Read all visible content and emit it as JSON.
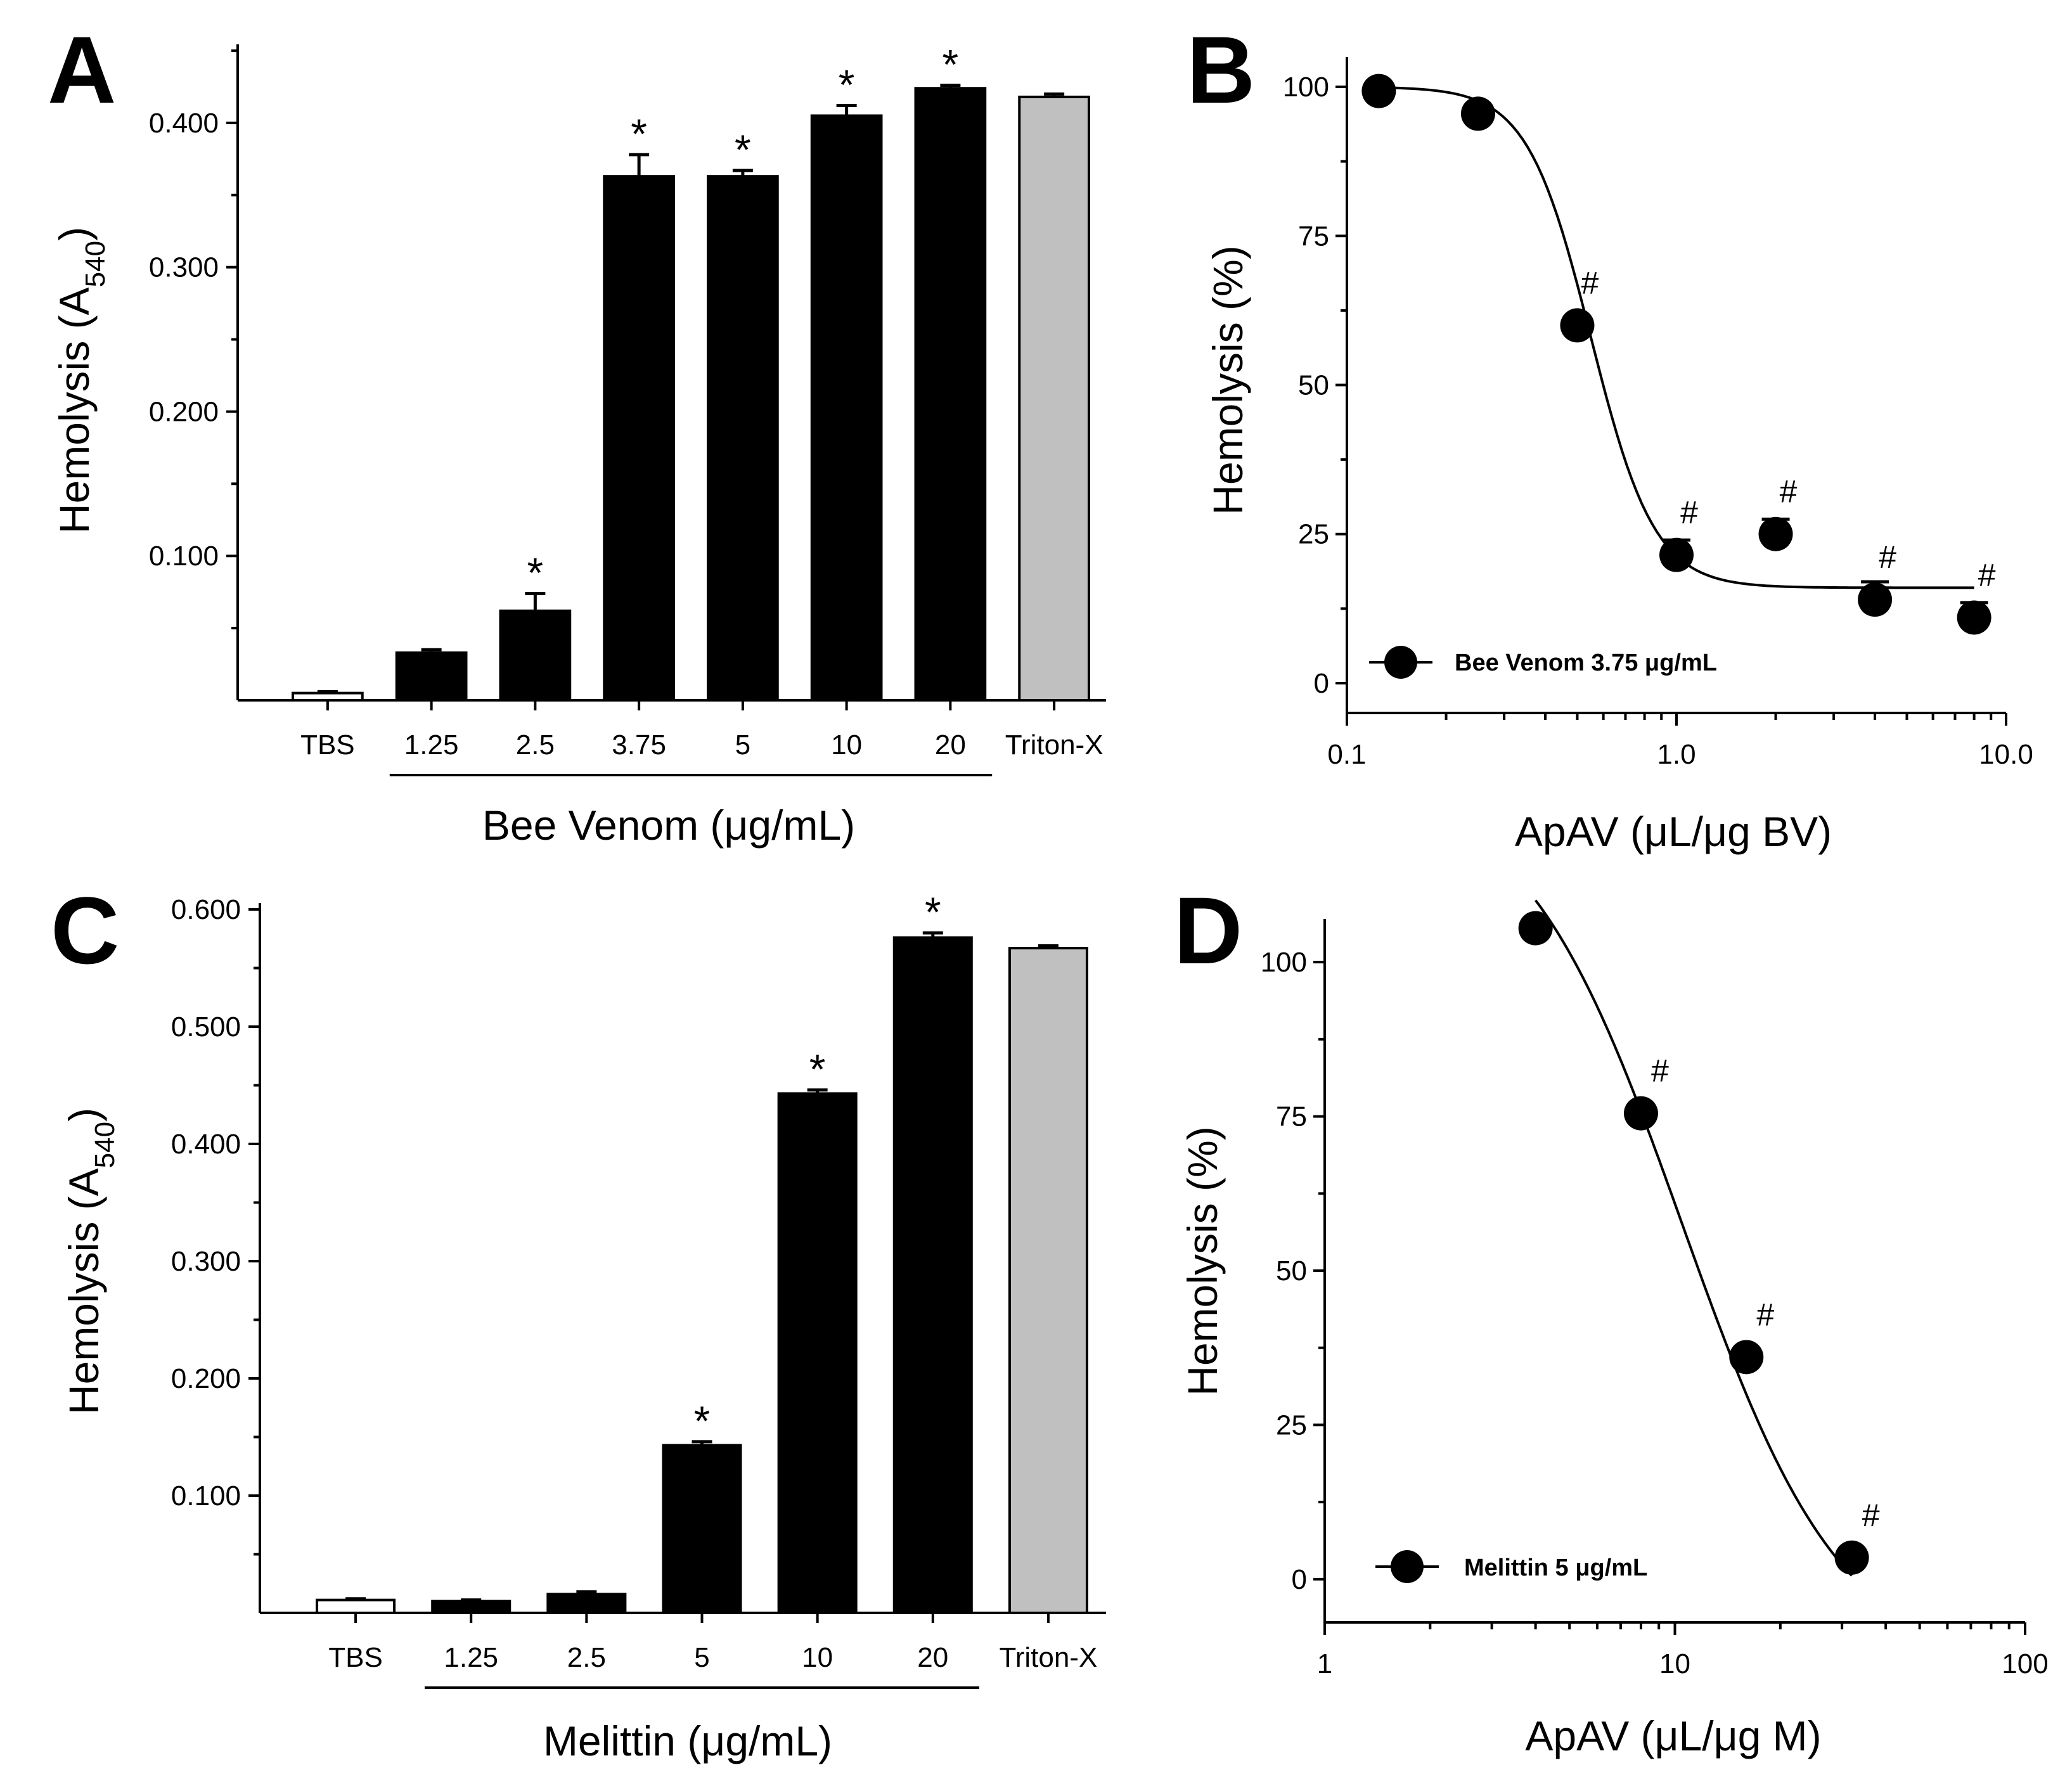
{
  "chart_data": [
    {
      "id": "A",
      "type": "bar",
      "panel_label": "A",
      "ylabel": "Hemolysis (A540)",
      "ylabel_main": "Hemolysis (A",
      "ylabel_sub": "540",
      "ylabel_close": ")",
      "xlabel": "Bee Venom (μg/mL)",
      "ylim": [
        0,
        0.45
      ],
      "yticks": [
        "0.100",
        "0.200",
        "0.300",
        "0.400"
      ],
      "ytick_values": [
        0.1,
        0.2,
        0.3,
        0.4
      ],
      "categories": [
        "TBS",
        "1.25",
        "2.5",
        "3.75",
        "5",
        "10",
        "20",
        "Triton-X"
      ],
      "values": [
        0.005,
        0.033,
        0.062,
        0.363,
        0.363,
        0.405,
        0.424,
        0.418
      ],
      "errors": [
        0.001,
        0.002,
        0.012,
        0.015,
        0.004,
        0.007,
        0.002,
        0.002
      ],
      "colors": [
        "#ffffff",
        "#000000",
        "#000000",
        "#000000",
        "#000000",
        "#000000",
        "#000000",
        "#c0c0c0"
      ],
      "significance": [
        "",
        "",
        "*",
        "*",
        "*",
        "*",
        "*",
        ""
      ],
      "group_underline": [
        1,
        6
      ]
    },
    {
      "id": "B",
      "type": "scatter",
      "panel_label": "B",
      "ylabel": "Hemolysis (%)",
      "xlabel": "ApAV (μL/μg BV)",
      "xscale": "log",
      "xlim": [
        0.1,
        10
      ],
      "ylim": [
        -5,
        105
      ],
      "xticks": [
        "0.1",
        "1.0",
        "10.0"
      ],
      "xtick_values": [
        0.1,
        1,
        10
      ],
      "yticks": [
        "0",
        "25",
        "50",
        "75",
        "100"
      ],
      "ytick_values": [
        0,
        25,
        50,
        75,
        100
      ],
      "x": [
        0.125,
        0.25,
        0.5,
        1,
        2,
        4,
        8
      ],
      "y": [
        99.3,
        95.5,
        60,
        21.5,
        25,
        14,
        11
      ],
      "errors": [
        0,
        0,
        0,
        2.5,
        2.5,
        3,
        2.5
      ],
      "significance": [
        "",
        "",
        "#",
        "#",
        "#",
        "#",
        "#"
      ],
      "fit": {
        "top": 100,
        "bottom": 16,
        "ec50": 0.55,
        "hill": 4.5,
        "range": [
          0.125,
          8
        ]
      },
      "legend": "Bee Venom 3.75 μg/mL"
    },
    {
      "id": "C",
      "type": "bar",
      "panel_label": "C",
      "ylabel": "Hemolysis (A540)",
      "ylabel_main": "Hemolysis (A",
      "ylabel_sub": "540",
      "ylabel_close": ")",
      "xlabel": "Melittin (μg/mL)",
      "ylim": [
        0,
        0.6
      ],
      "yticks": [
        "0.100",
        "0.200",
        "0.300",
        "0.400",
        "0.500",
        "0.600"
      ],
      "ytick_values": [
        0.1,
        0.2,
        0.3,
        0.4,
        0.5,
        0.6
      ],
      "categories": [
        "TBS",
        "1.25",
        "2.5",
        "5",
        "10",
        "20",
        "Triton-X"
      ],
      "values": [
        0.011,
        0.01,
        0.016,
        0.143,
        0.443,
        0.576,
        0.567
      ],
      "errors": [
        0.001,
        0.001,
        0.002,
        0.003,
        0.003,
        0.004,
        0.002
      ],
      "colors": [
        "#ffffff",
        "#000000",
        "#000000",
        "#000000",
        "#000000",
        "#000000",
        "#c0c0c0"
      ],
      "significance": [
        "",
        "",
        "",
        "*",
        "*",
        "*",
        ""
      ],
      "group_underline": [
        1,
        5
      ]
    },
    {
      "id": "D",
      "type": "scatter",
      "panel_label": "D",
      "ylabel": "Hemolysis (%)",
      "xlabel": "ApAV (μL/μg M)",
      "xscale": "log",
      "xlim": [
        1,
        100
      ],
      "ylim": [
        -7,
        107
      ],
      "xticks": [
        "1",
        "10",
        "100"
      ],
      "xtick_values": [
        1,
        10,
        100
      ],
      "yticks": [
        "0",
        "25",
        "50",
        "75",
        "100"
      ],
      "ytick_values": [
        0,
        25,
        50,
        75,
        100
      ],
      "x": [
        4,
        8,
        16,
        32
      ],
      "y": [
        105.5,
        75.5,
        36,
        3.5
      ],
      "errors": [
        0,
        0,
        0,
        0
      ],
      "significance": [
        "",
        "#",
        "#",
        "#"
      ],
      "fit": {
        "top": 130,
        "bottom": -15,
        "ec50": 10.5,
        "hill": 1.9,
        "range": [
          4,
          32
        ]
      },
      "legend": "Melittin 5 μg/mL"
    }
  ]
}
